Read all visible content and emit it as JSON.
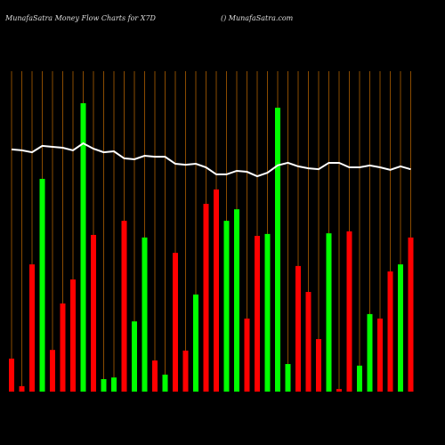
{
  "chart_data": {
    "type": "bar",
    "title": "MunafaSatra  Money Flow  Charts for X7D",
    "subtitle": "() MunafaSatra.com",
    "ylim": [
      0,
      100
    ],
    "values": [
      10.3,
      1.7,
      39.7,
      66.4,
      13,
      27.5,
      35,
      90,
      48.9,
      3.9,
      4.4,
      53.3,
      21.9,
      48.1,
      9.7,
      5.3,
      43.3,
      12.8,
      30.3,
      58.6,
      63.1,
      53.3,
      56.9,
      22.8,
      48.6,
      49.2,
      88.6,
      8.6,
      39.2,
      31.1,
      16.4,
      49.4,
      0.8,
      50,
      8.1,
      24.2,
      22.8,
      37.5,
      39.7,
      48.1
    ],
    "colors": [
      "#ff0000",
      "#ff0000",
      "#ff0000",
      "#00ff00",
      "#ff0000",
      "#ff0000",
      "#ff0000",
      "#00ff00",
      "#ff0000",
      "#00ff00",
      "#00ff00",
      "#ff0000",
      "#00ff00",
      "#00ff00",
      "#ff0000",
      "#00ff00",
      "#ff0000",
      "#ff0000",
      "#00ff00",
      "#ff0000",
      "#ff0000",
      "#00ff00",
      "#00ff00",
      "#ff0000",
      "#ff0000",
      "#00ff00",
      "#00ff00",
      "#00ff00",
      "#ff0000",
      "#ff0000",
      "#ff0000",
      "#00ff00",
      "#ff0000",
      "#ff0000",
      "#00ff00",
      "#00ff00",
      "#ff0000",
      "#ff0000",
      "#00ff00",
      "#ff0000"
    ],
    "line_values": [
      75.6,
      75.3,
      74.7,
      76.7,
      76.4,
      76.1,
      75.3,
      77.5,
      75.8,
      74.7,
      75,
      72.8,
      72.5,
      73.6,
      73.3,
      73.3,
      71.1,
      70.8,
      71.1,
      70,
      67.8,
      67.8,
      68.9,
      68.6,
      67.2,
      68.3,
      70.6,
      71.4,
      70.3,
      69.7,
      69.4,
      71.4,
      71.4,
      70,
      70,
      70.6,
      70,
      69.2,
      70.3,
      69.4
    ],
    "line_color": "#ffffff"
  }
}
